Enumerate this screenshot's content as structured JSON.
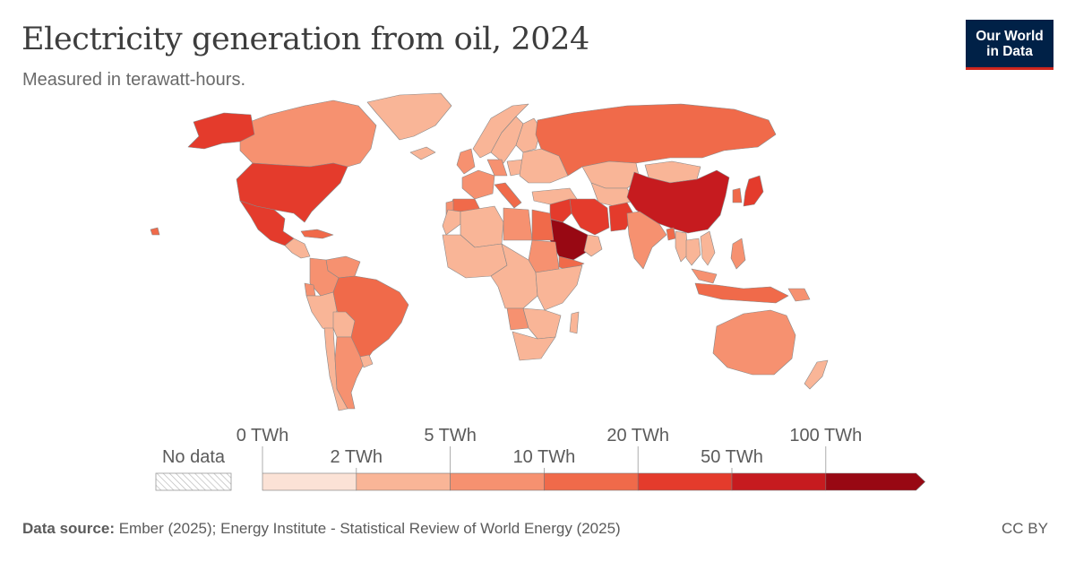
{
  "title": "Electricity generation from oil, 2024",
  "subtitle": "Measured in terawatt-hours.",
  "logo": {
    "line1": "Our World",
    "line2": "in Data"
  },
  "legend": {
    "no_data_label": "No data",
    "bins": [
      {
        "from": "0 TWh",
        "to": "2 TWh",
        "color": "#fbe2d6"
      },
      {
        "from": "2 TWh",
        "to": "5 TWh",
        "color": "#f9b597"
      },
      {
        "from": "5 TWh",
        "to": "10 TWh",
        "color": "#f69170"
      },
      {
        "from": "10 TWh",
        "to": "20 TWh",
        "color": "#f06a4a"
      },
      {
        "from": "20 TWh",
        "to": "50 TWh",
        "color": "#e43b2c"
      },
      {
        "from": "50 TWh",
        "to": "100 TWh",
        "color": "#c61b1f"
      },
      {
        "from": "100 TWh",
        "to": "",
        "color": "#980813"
      }
    ],
    "tick_labels": [
      "0 TWh",
      "2 TWh",
      "5 TWh",
      "10 TWh",
      "20 TWh",
      "50 TWh",
      "100 TWh"
    ]
  },
  "footer": {
    "source_label": "Data source:",
    "source_text": "Ember (2025); Energy Institute - Statistical Review of World Energy (2025)",
    "license": "CC BY"
  },
  "map_regions": [
    {
      "name": "Canada",
      "bin": 2
    },
    {
      "name": "Alaska",
      "bin": 4
    },
    {
      "name": "Greenland",
      "bin": 1
    },
    {
      "name": "United States",
      "bin": 4
    },
    {
      "name": "Mexico",
      "bin": 4
    },
    {
      "name": "Central America",
      "bin": 1
    },
    {
      "name": "Cuba",
      "bin": 3
    },
    {
      "name": "Venezuela",
      "bin": 2
    },
    {
      "name": "Colombia",
      "bin": 2
    },
    {
      "name": "Ecuador",
      "bin": 2
    },
    {
      "name": "Peru",
      "bin": 1
    },
    {
      "name": "Brazil",
      "bin": 3
    },
    {
      "name": "Bolivia",
      "bin": 1
    },
    {
      "name": "Chile",
      "bin": 1
    },
    {
      "name": "Argentina",
      "bin": 2
    },
    {
      "name": "Uruguay",
      "bin": 1
    },
    {
      "name": "Iceland",
      "bin": 1
    },
    {
      "name": "Norway",
      "bin": 1
    },
    {
      "name": "Sweden",
      "bin": 1
    },
    {
      "name": "Finland",
      "bin": 1
    },
    {
      "name": "United Kingdom",
      "bin": 2
    },
    {
      "name": "France",
      "bin": 2
    },
    {
      "name": "Spain",
      "bin": 3
    },
    {
      "name": "Portugal",
      "bin": 2
    },
    {
      "name": "Germany",
      "bin": 2
    },
    {
      "name": "Poland",
      "bin": 1
    },
    {
      "name": "Italy",
      "bin": 3
    },
    {
      "name": "Eastern Europe",
      "bin": 1
    },
    {
      "name": "Turkey",
      "bin": 1
    },
    {
      "name": "Russia",
      "bin": 3
    },
    {
      "name": "Kazakhstan",
      "bin": 1
    },
    {
      "name": "Central Asia",
      "bin": 1
    },
    {
      "name": "Mongolia",
      "bin": 1
    },
    {
      "name": "China",
      "bin": 5
    },
    {
      "name": "Japan",
      "bin": 4
    },
    {
      "name": "Korea",
      "bin": 3
    },
    {
      "name": "Iran",
      "bin": 4
    },
    {
      "name": "Iraq",
      "bin": 4
    },
    {
      "name": "Saudi Arabia",
      "bin": 6
    },
    {
      "name": "Yemen",
      "bin": 3
    },
    {
      "name": "Oman",
      "bin": 1
    },
    {
      "name": "Pakistan",
      "bin": 4
    },
    {
      "name": "India",
      "bin": 2
    },
    {
      "name": "Bangladesh",
      "bin": 3
    },
    {
      "name": "Myanmar",
      "bin": 1
    },
    {
      "name": "Thailand",
      "bin": 1
    },
    {
      "name": "Vietnam",
      "bin": 1
    },
    {
      "name": "Philippines",
      "bin": 2
    },
    {
      "name": "Indonesia",
      "bin": 3
    },
    {
      "name": "Malaysia",
      "bin": 2
    },
    {
      "name": "Papua New Guinea",
      "bin": 2
    },
    {
      "name": "Australia",
      "bin": 2
    },
    {
      "name": "New Zealand",
      "bin": 1
    },
    {
      "name": "Morocco",
      "bin": 1
    },
    {
      "name": "Algeria",
      "bin": 1
    },
    {
      "name": "Libya",
      "bin": 2
    },
    {
      "name": "Egypt",
      "bin": 3
    },
    {
      "name": "Sudan",
      "bin": 2
    },
    {
      "name": "West Africa",
      "bin": 1
    },
    {
      "name": "Central Africa",
      "bin": 1
    },
    {
      "name": "East Africa",
      "bin": 1
    },
    {
      "name": "Angola",
      "bin": 2
    },
    {
      "name": "Southern Africa",
      "bin": 1
    },
    {
      "name": "South Africa",
      "bin": 1
    },
    {
      "name": "Madagascar",
      "bin": 1
    },
    {
      "name": "Hawaii",
      "bin": 3
    }
  ]
}
